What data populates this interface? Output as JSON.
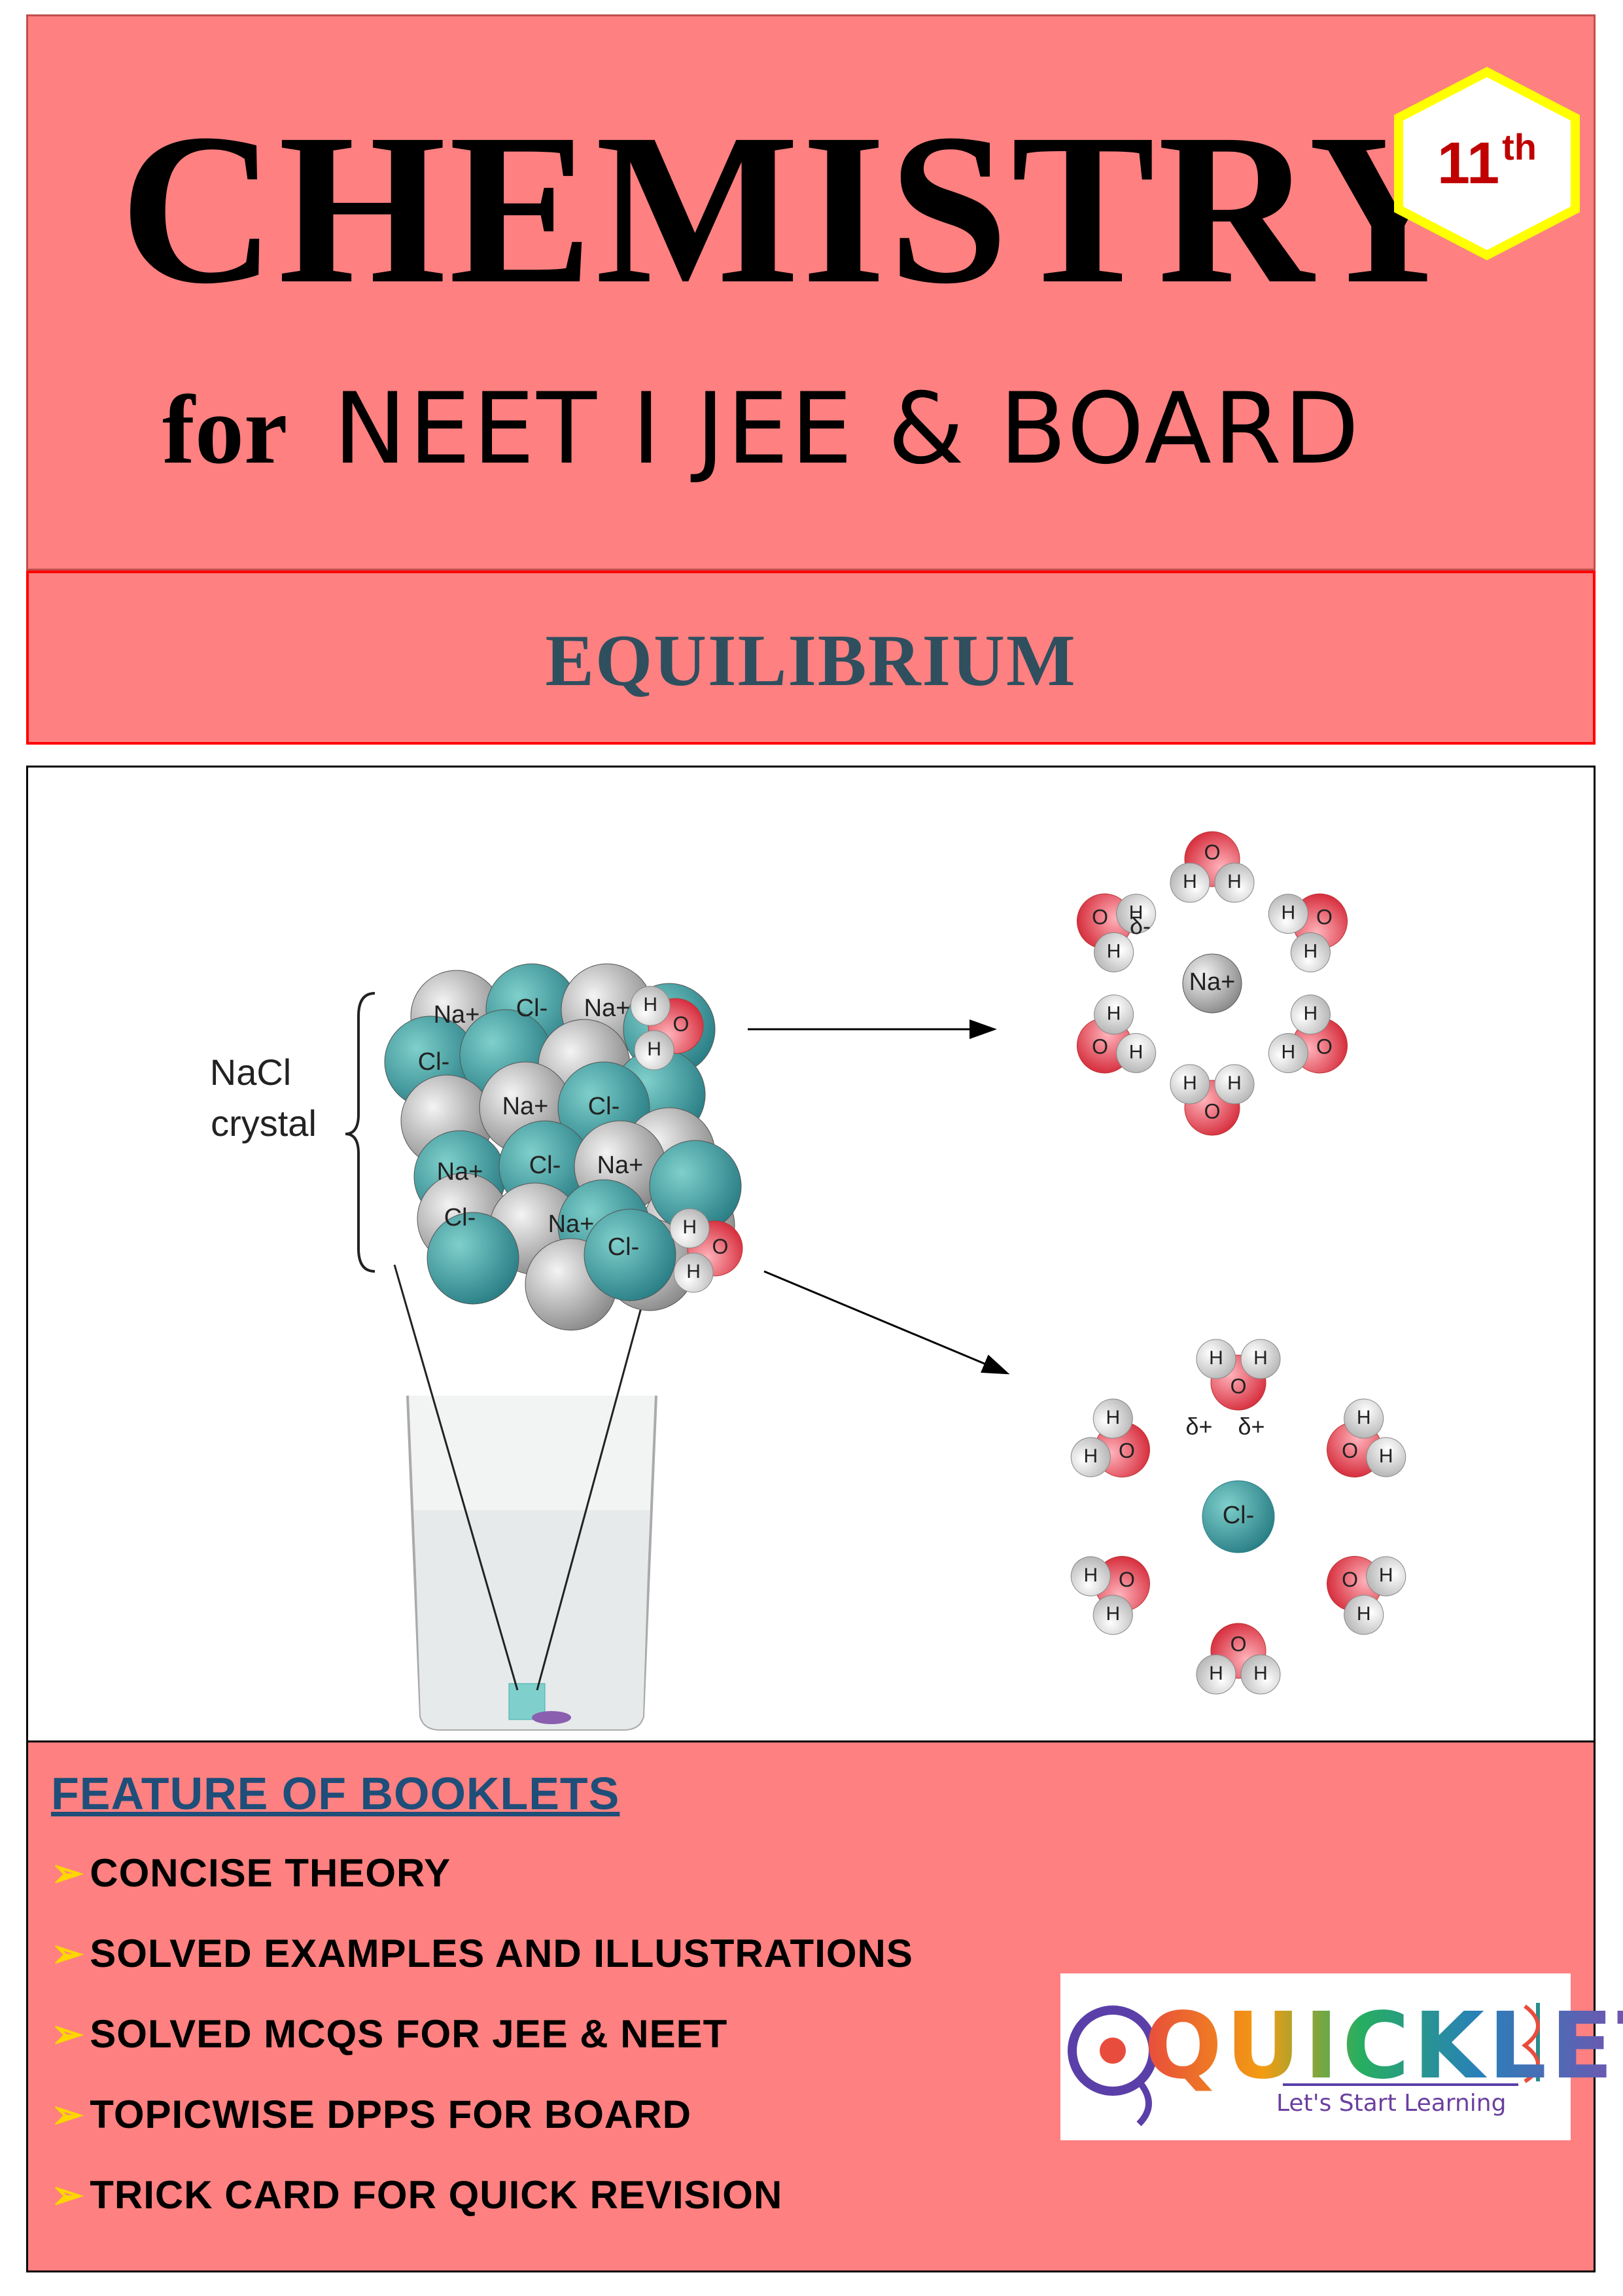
{
  "header": {
    "title": "CHEMISTRY",
    "subtitle_for": "for",
    "subtitle_exams": "NEET I JEE & BOARD",
    "grade_number": "11",
    "grade_suffix": "th"
  },
  "topic": "EQUILIBRIUM",
  "figure": {
    "crystal_label_line1": "NaCl",
    "crystal_label_line2": "crystal",
    "ions": {
      "sodium": "Na+",
      "chloride": "Cl-"
    },
    "water_atoms": {
      "hydrogen": "H",
      "oxygen": "O"
    },
    "partial_charges": {
      "negative": "δ-",
      "positive": "δ+"
    }
  },
  "features": {
    "title": "FEATURE OF BOOKLETS",
    "items": [
      "CONCISE THEORY",
      "SOLVED EXAMPLES AND ILLUSTRATIONS",
      "SOLVED MCQS FOR JEE & NEET",
      "TOPICWISE DPPS FOR BOARD",
      "TRICK CARD FOR QUICK REVISION"
    ]
  },
  "logo": {
    "word": "QUICKLET",
    "tagline": "Let's Start Learning"
  },
  "colors": {
    "band": "#fe8080",
    "grade_text": "#c00000",
    "grade_border": "#ffff00",
    "topic_text": "#2f4f5f",
    "feature_title": "#1f4e79",
    "chloride": "#3a9a9a",
    "sodium": "#9a9a9a",
    "oxygen": "#e0404f"
  }
}
